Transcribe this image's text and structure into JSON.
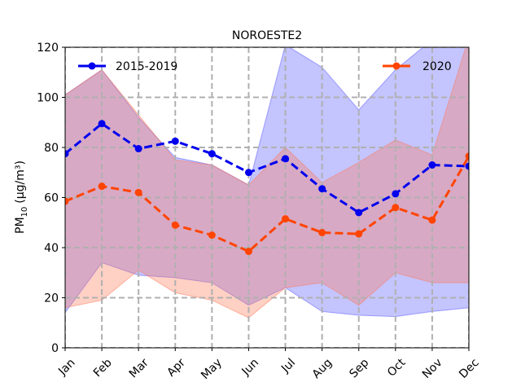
{
  "chart_data": {
    "type": "line",
    "title": "NOROESTE2",
    "xlabel": "",
    "ylabel_main": "PM",
    "ylabel_sub": "10",
    "ylabel_units": "(μg/m³)",
    "categories": [
      "Jan",
      "Feb",
      "Mar",
      "Apr",
      "May",
      "Jun",
      "Jul",
      "Aug",
      "Sep",
      "Oct",
      "Nov",
      "Dec"
    ],
    "ylim": [
      0,
      120
    ],
    "yticks": [
      "0",
      "20",
      "40",
      "60",
      "80",
      "100",
      "120"
    ],
    "grid": true,
    "series": [
      {
        "name": "2015-2019",
        "color": "#0000ee",
        "band_color": "#5555ff",
        "values": [
          77.5,
          89.5,
          79.5,
          82.5,
          77.5,
          70.0,
          75.5,
          63.5,
          54.0,
          61.5,
          73.0,
          72.5
        ],
        "band_upper": [
          101,
          111,
          92,
          76,
          73,
          65,
          121,
          112,
          95,
          111,
          123,
          124
        ],
        "band_lower": [
          14,
          34,
          29,
          28,
          26,
          17,
          24,
          14.5,
          13,
          12.5,
          14.5,
          16
        ]
      },
      {
        "name": "2020",
        "color": "#ff4400",
        "band_color": "#ff7755",
        "values": [
          58.5,
          64.5,
          62.0,
          49.0,
          45.0,
          38.5,
          51.5,
          46.0,
          45.5,
          56.0,
          51.0,
          76.5
        ],
        "band_upper": [
          101,
          111,
          93,
          75,
          73,
          65,
          80,
          66,
          74,
          83,
          77,
          124
        ],
        "band_lower": [
          16,
          19,
          31,
          22,
          19,
          12,
          24,
          26,
          17,
          30,
          26,
          26
        ]
      }
    ],
    "legend": [
      {
        "label": "2015-2019",
        "placement": "top-left"
      },
      {
        "label": "2020",
        "placement": "top-right"
      }
    ]
  }
}
